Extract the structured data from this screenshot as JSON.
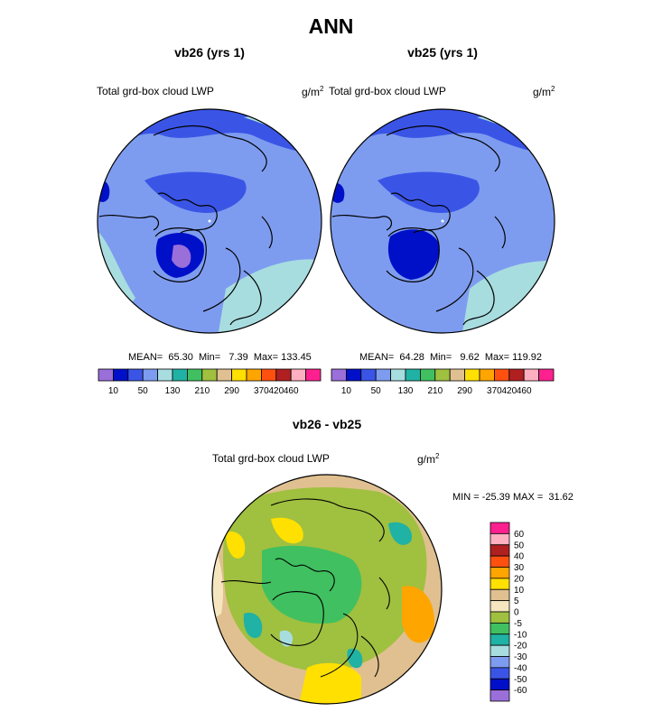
{
  "page": {
    "title": "ANN"
  },
  "chart_data": [
    {
      "type": "polar_contour_map",
      "title": "vb26 (yrs 1)",
      "field_label": "Total grd-box cloud LWP",
      "units": "g/m²",
      "units_base": "g/m",
      "units_exp": "2",
      "stats": {
        "mean_label": "MEAN=",
        "mean": "65.30",
        "min_label": "Min=",
        "min": "7.39",
        "max_label": "Max=",
        "max": "133.45"
      },
      "colorbar_ticks": [
        "10",
        "50",
        "130",
        "210",
        "290",
        "370",
        "420",
        "460"
      ],
      "colorbar_colors": [
        "#9a6fd9",
        "#0010c8",
        "#3a55e6",
        "#7e9cef",
        "#a8dde0",
        "#20b2a4",
        "#40c060",
        "#a0c040",
        "#e0c090",
        "#ffe000",
        "#ffa500",
        "#ff5010",
        "#b02020",
        "#ffb0c0",
        "#ff2090"
      ]
    },
    {
      "type": "polar_contour_map",
      "title": "vb25 (yrs 1)",
      "field_label": "Total grd-box cloud LWP",
      "units": "g/m²",
      "units_base": "g/m",
      "units_exp": "2",
      "stats": {
        "mean_label": "MEAN=",
        "mean": "64.28",
        "min_label": "Min=",
        "min": "9.62",
        "max_label": "Max=",
        "max": "119.92"
      },
      "colorbar_ticks": [
        "10",
        "50",
        "130",
        "210",
        "290",
        "370",
        "420",
        "460"
      ],
      "colorbar_colors": [
        "#9a6fd9",
        "#0010c8",
        "#3a55e6",
        "#7e9cef",
        "#a8dde0",
        "#20b2a4",
        "#40c060",
        "#a0c040",
        "#e0c090",
        "#ffe000",
        "#ffa500",
        "#ff5010",
        "#b02020",
        "#ffb0c0",
        "#ff2090"
      ]
    },
    {
      "type": "polar_contour_map",
      "title": "vb26 - vb25",
      "field_label": "Total grd-box cloud LWP",
      "units": "g/m²",
      "units_base": "g/m",
      "units_exp": "2",
      "stats": {
        "text": "MIN = -25.39 MAX =  31.62"
      },
      "colorbar_ticks": [
        "60",
        "50",
        "40",
        "30",
        "20",
        "10",
        "5",
        "0",
        "-5",
        "-10",
        "-20",
        "-30",
        "-40",
        "-50",
        "-60"
      ],
      "colorbar_colors": [
        "#ff2090",
        "#ffb0c0",
        "#b02020",
        "#ff5010",
        "#ffa500",
        "#ffe000",
        "#e0c090",
        "#f5e6c0",
        "#a0c040",
        "#40c060",
        "#20b2a4",
        "#a8dde0",
        "#7e9cef",
        "#3a55e6",
        "#0010c8",
        "#9a6fd9"
      ]
    }
  ]
}
